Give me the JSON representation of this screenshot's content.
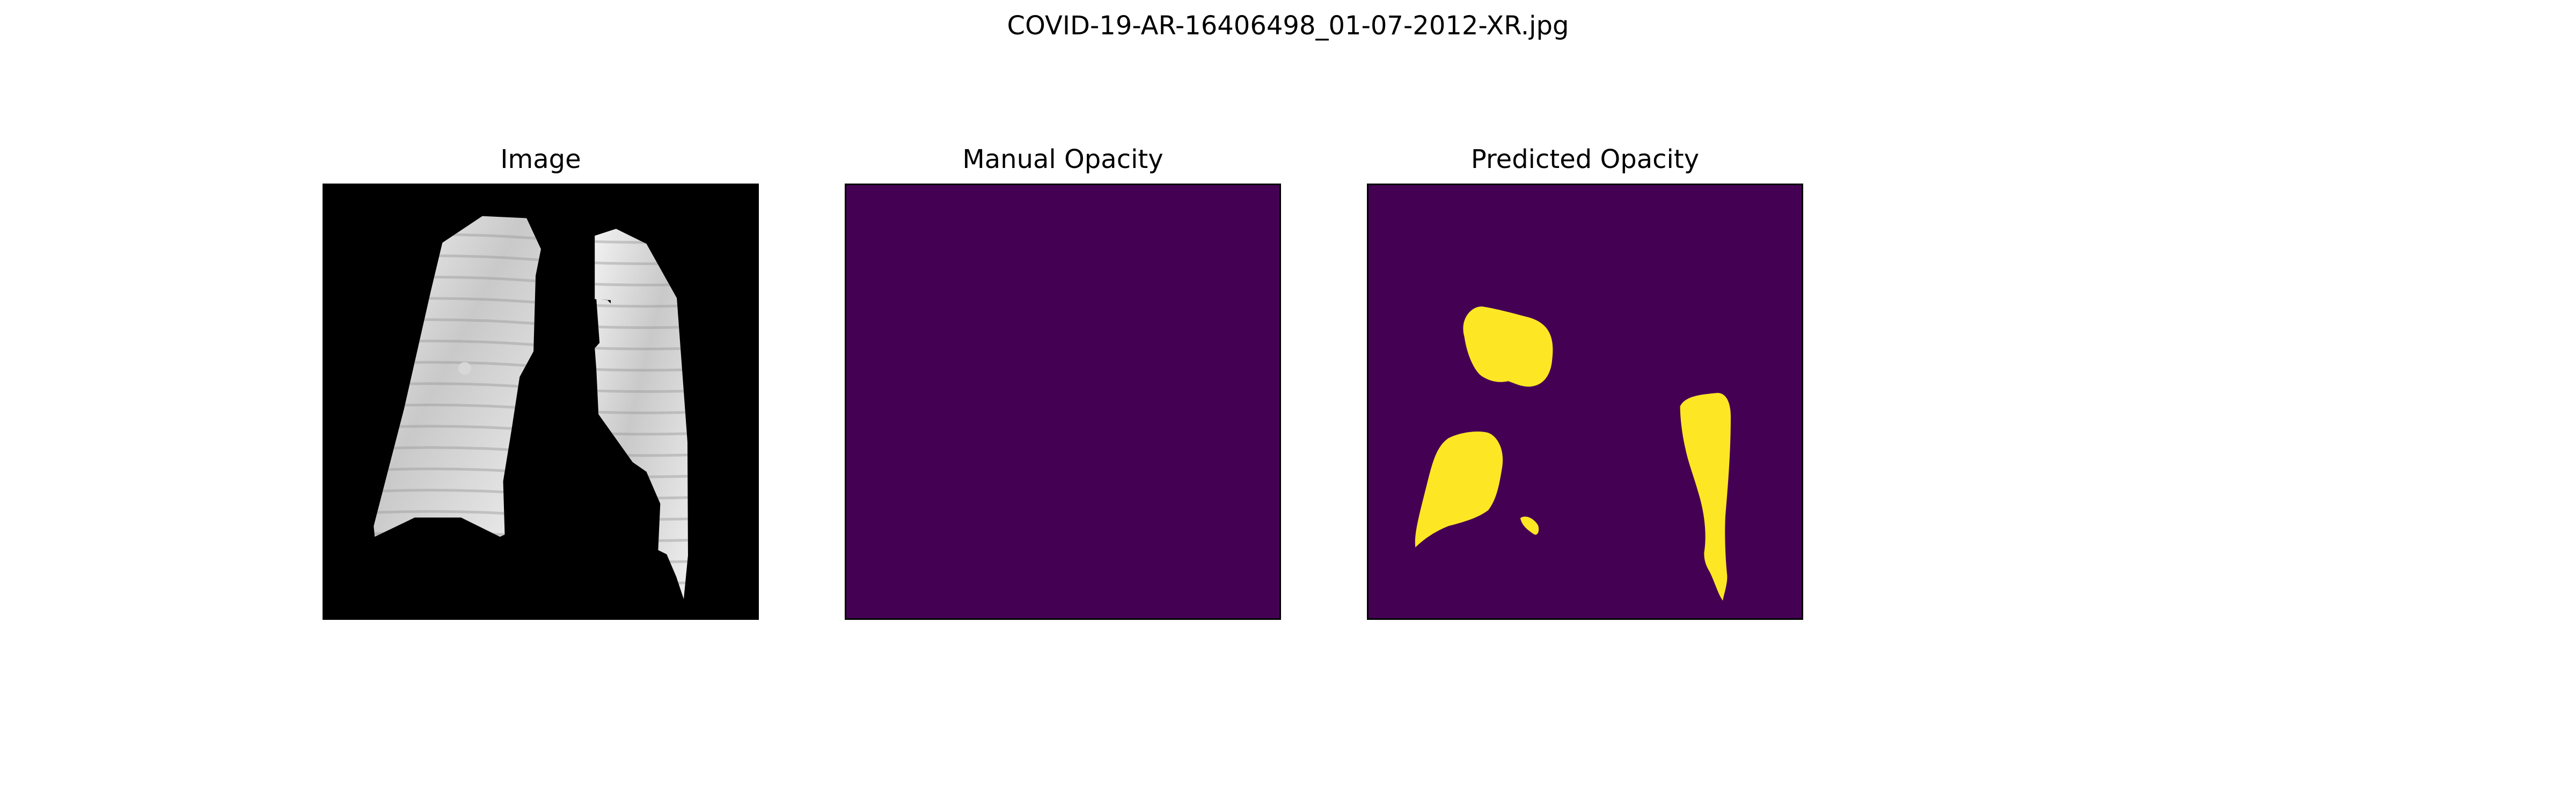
{
  "figure": {
    "title": "COVID-19-AR-16406498_01-07-2012-XR.jpg"
  },
  "panels": [
    {
      "title": "Image"
    },
    {
      "title": "Manual Opacity"
    },
    {
      "title": "Predicted Opacity"
    }
  ],
  "colors": {
    "image_background": "#000000",
    "mask_background": "#440154",
    "mask_foreground": "#fde725"
  }
}
